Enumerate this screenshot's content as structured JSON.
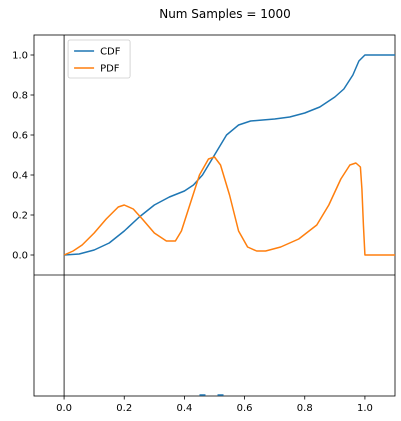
{
  "figure": {
    "title": "Num Samples = 1000"
  },
  "colors": {
    "cdf": "#1f77b4",
    "pdf": "#ff7f0e",
    "axis": "#000000",
    "background": "#ffffff"
  },
  "chart_data": {
    "type": "line",
    "title": "Num Samples = 1000",
    "xlabel": "",
    "ylabel": "",
    "xlim": [
      -0.1,
      1.1
    ],
    "ylim": [
      -0.1,
      1.1
    ],
    "x_ticks": [
      0.0,
      0.2,
      0.4,
      0.6,
      0.8,
      1.0
    ],
    "x_tick_labels": [
      "0.0",
      "0.2",
      "0.4",
      "0.6",
      "0.8",
      "1.0"
    ],
    "y_ticks": [
      0.0,
      0.2,
      0.4,
      0.6,
      0.8,
      1.0
    ],
    "y_tick_labels": [
      "0.0",
      "0.2",
      "0.4",
      "0.6",
      "0.8",
      "1.0"
    ],
    "grid": false,
    "legend_position": "top-left",
    "series": [
      {
        "name": "CDF",
        "color": "#1f77b4",
        "x": [
          0.0,
          0.05,
          0.1,
          0.15,
          0.2,
          0.25,
          0.3,
          0.35,
          0.4,
          0.43,
          0.46,
          0.5,
          0.54,
          0.58,
          0.62,
          0.66,
          0.7,
          0.75,
          0.8,
          0.85,
          0.9,
          0.93,
          0.96,
          0.98,
          1.0,
          1.1
        ],
        "y": [
          0.0,
          0.005,
          0.025,
          0.06,
          0.12,
          0.19,
          0.25,
          0.29,
          0.32,
          0.35,
          0.4,
          0.5,
          0.6,
          0.65,
          0.67,
          0.675,
          0.68,
          0.69,
          0.71,
          0.74,
          0.79,
          0.83,
          0.9,
          0.97,
          1.0,
          1.0
        ]
      },
      {
        "name": "PDF",
        "color": "#ff7f0e",
        "x": [
          0.0,
          0.03,
          0.06,
          0.1,
          0.14,
          0.18,
          0.2,
          0.23,
          0.26,
          0.3,
          0.34,
          0.37,
          0.39,
          0.42,
          0.45,
          0.48,
          0.5,
          0.52,
          0.55,
          0.58,
          0.61,
          0.64,
          0.67,
          0.72,
          0.78,
          0.84,
          0.88,
          0.92,
          0.95,
          0.97,
          0.985,
          0.99,
          0.995,
          1.0,
          1.1
        ],
        "y": [
          0.0,
          0.02,
          0.05,
          0.11,
          0.18,
          0.24,
          0.25,
          0.23,
          0.18,
          0.11,
          0.07,
          0.07,
          0.12,
          0.26,
          0.4,
          0.48,
          0.49,
          0.45,
          0.3,
          0.12,
          0.04,
          0.02,
          0.02,
          0.04,
          0.08,
          0.15,
          0.25,
          0.38,
          0.45,
          0.46,
          0.44,
          0.33,
          0.15,
          0.0,
          0.0
        ]
      }
    ]
  }
}
